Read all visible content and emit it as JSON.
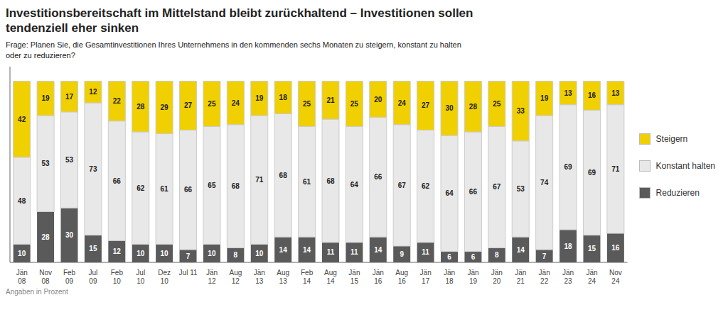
{
  "chart_data": {
    "type": "bar",
    "stacked": true,
    "title": "Investitionsbereitschaft im Mittelstand bleibt zurückhaltend – Investitionen sollen\ntendenziell eher sinken",
    "subtitle": "Frage: Planen Sie, die Gesamtinvestitionen Ihres Unternehmens in den kommenden sechs Monaten zu steigern, konstant zu halten\noder zu reduzieren?",
    "annotations": [
      "Angaben in Prozent"
    ],
    "categories": [
      "Jän\n08",
      "Nov\n08",
      "Feb\n09",
      "Jul\n09",
      "Feb\n10",
      "Jul\n10",
      "Dez\n10",
      "Jul 11",
      "Jän\n12",
      "Aug\n12",
      "Jän\n13",
      "Aug\n13",
      "Feb\n14",
      "Aug\n14",
      "Jän\n15",
      "Jän\n16",
      "Aug\n16",
      "Jän\n17",
      "Jän\n18",
      "Jän\n19",
      "Jän\n20",
      "Jän\n21",
      "Jän\n22",
      "Jän\n23",
      "Jän\n24",
      "Nov\n24"
    ],
    "series": [
      {
        "name": "Reduzieren",
        "color": "#5a5a5a",
        "values": [
          10,
          28,
          30,
          15,
          12,
          10,
          10,
          7,
          10,
          8,
          10,
          14,
          14,
          11,
          11,
          14,
          9,
          11,
          6,
          6,
          8,
          14,
          7,
          18,
          15,
          16
        ]
      },
      {
        "name": "Konstant halten",
        "color": "#e8e8e8",
        "values": [
          48,
          53,
          53,
          73,
          66,
          62,
          61,
          66,
          65,
          68,
          71,
          68,
          61,
          68,
          64,
          66,
          67,
          62,
          64,
          66,
          67,
          53,
          74,
          69,
          69,
          71
        ]
      },
      {
        "name": "Steigern",
        "color": "#f0d000",
        "values": [
          42,
          19,
          17,
          12,
          22,
          28,
          29,
          27,
          25,
          24,
          19,
          18,
          25,
          21,
          25,
          20,
          24,
          27,
          30,
          28,
          25,
          33,
          19,
          13,
          16,
          13
        ]
      }
    ],
    "ylim": [
      0,
      108
    ],
    "tick_labels": "x",
    "data_labels": true,
    "grid": false,
    "legend": "right"
  }
}
